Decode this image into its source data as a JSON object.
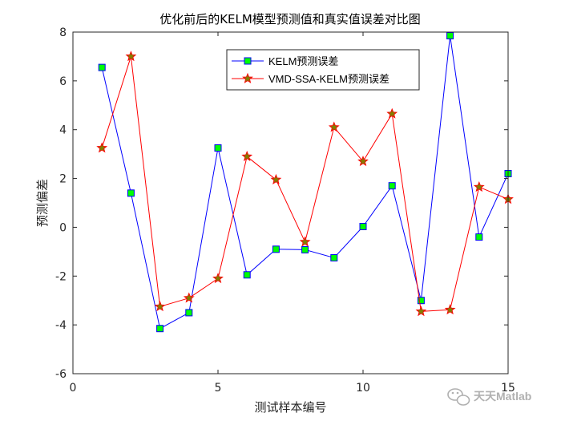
{
  "chart_data": {
    "type": "line",
    "title": "优化前后的KELM模型预测值和真实值误差对比图",
    "xlabel": "测试样本编号",
    "ylabel": "预测偏差",
    "xlim": [
      0,
      15
    ],
    "ylim": [
      -6,
      8
    ],
    "xticks": [
      0,
      5,
      10,
      15
    ],
    "yticks": [
      -6,
      -4,
      -2,
      0,
      2,
      4,
      6,
      8
    ],
    "grid": false,
    "legend_position": "top-center",
    "x": [
      1,
      2,
      3,
      4,
      5,
      6,
      7,
      8,
      9,
      10,
      11,
      12,
      13,
      14,
      15
    ],
    "series": [
      {
        "name": "KELM预测误差",
        "color": "#0000ff",
        "marker": "square",
        "marker_face": "#00ff00",
        "values": [
          6.55,
          1.4,
          -4.15,
          -3.5,
          3.25,
          -1.95,
          -0.9,
          -0.92,
          -1.25,
          0.03,
          1.7,
          -3.0,
          7.85,
          -0.4,
          2.2
        ]
      },
      {
        "name": "VMD-SSA-KELM预测误差",
        "color": "#ff0000",
        "marker": "star",
        "marker_face": "#808000",
        "values": [
          3.25,
          7.0,
          -3.25,
          -2.9,
          -2.1,
          2.9,
          1.95,
          -0.6,
          4.1,
          2.7,
          4.65,
          -3.45,
          -3.38,
          1.65,
          1.15
        ]
      }
    ]
  },
  "watermark": {
    "text": "天天Matlab",
    "icon": "wechat-icon"
  }
}
